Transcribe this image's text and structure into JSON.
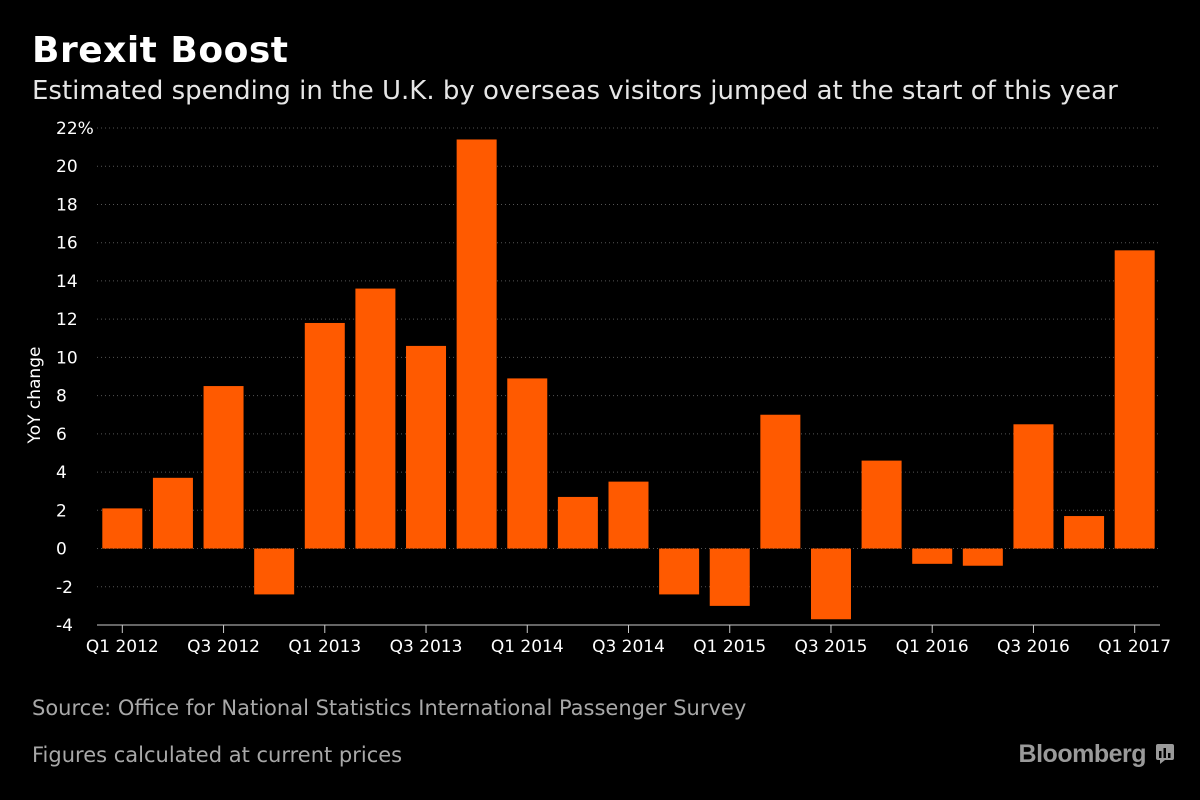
{
  "header": {
    "title": "Brexit Boost",
    "subtitle": "Estimated spending in the U.K. by overseas visitors jumped at the start of this year"
  },
  "footer": {
    "source": "Source: Office for National Statistics International Passenger Survey",
    "note": "Figures calculated at current prices",
    "brand": "Bloomberg",
    "brand_icon": "bloomberg-chart-icon"
  },
  "colors": {
    "background": "#000000",
    "bar": "#ff5a00",
    "grid": "#555555",
    "text": "#ffffff",
    "muted": "#a8a8a8"
  },
  "chart_data": {
    "type": "bar",
    "title": "Brexit Boost",
    "subtitle": "Estimated spending in the U.K. by overseas visitors jumped at the start of this year",
    "xlabel": "",
    "ylabel": "YoY change",
    "ylim": [
      -4,
      22
    ],
    "grid": true,
    "yticks": [
      -4,
      -2,
      0,
      2,
      4,
      6,
      8,
      10,
      12,
      14,
      16,
      18,
      20,
      22
    ],
    "ytick_labels": [
      "-4",
      "-2",
      "0",
      "2",
      "4",
      "6",
      "8",
      "10",
      "12",
      "14",
      "16",
      "18",
      "20",
      "22%"
    ],
    "categories": [
      "Q1 2012",
      "Q2 2012",
      "Q3 2012",
      "Q4 2012",
      "Q1 2013",
      "Q2 2013",
      "Q3 2013",
      "Q4 2013",
      "Q1 2014",
      "Q2 2014",
      "Q3 2014",
      "Q4 2014",
      "Q1 2015",
      "Q2 2015",
      "Q3 2015",
      "Q4 2015",
      "Q1 2016",
      "Q2 2016",
      "Q3 2016",
      "Q4 2016",
      "Q1 2017"
    ],
    "values": [
      2.1,
      3.7,
      8.5,
      -2.4,
      11.8,
      13.6,
      10.6,
      21.4,
      8.9,
      2.7,
      3.5,
      -2.4,
      -3.0,
      7.0,
      -3.7,
      4.6,
      -0.8,
      -0.9,
      6.5,
      1.7,
      15.6
    ],
    "xtick_labels": [
      {
        "index": 0,
        "q": "Q1",
        "year": "2012"
      },
      {
        "index": 2,
        "q": "Q3",
        "year": "2012"
      },
      {
        "index": 4,
        "q": "Q1",
        "year": "2013"
      },
      {
        "index": 6,
        "q": "Q3",
        "year": "2013"
      },
      {
        "index": 8,
        "q": "Q1",
        "year": "2014"
      },
      {
        "index": 10,
        "q": "Q3",
        "year": "2014"
      },
      {
        "index": 12,
        "q": "Q1",
        "year": "2015"
      },
      {
        "index": 14,
        "q": "Q3",
        "year": "2015"
      },
      {
        "index": 16,
        "q": "Q1",
        "year": "2016"
      },
      {
        "index": 18,
        "q": "Q3",
        "year": "2016"
      },
      {
        "index": 20,
        "q": "Q1",
        "year": "2017"
      }
    ]
  }
}
